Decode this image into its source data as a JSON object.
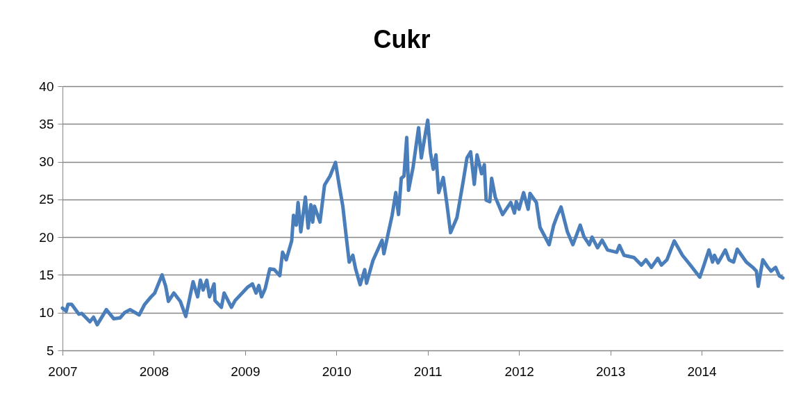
{
  "chart_data": {
    "type": "line",
    "title": "Cukr",
    "x": [
      2007.0,
      2007.04,
      2007.06,
      2007.1,
      2007.18,
      2007.21,
      2007.3,
      2007.34,
      2007.38,
      2007.48,
      2007.56,
      2007.63,
      2007.68,
      2007.74,
      2007.84,
      2007.9,
      2007.97,
      2008.01,
      2008.09,
      2008.13,
      2008.16,
      2008.22,
      2008.29,
      2008.35,
      2008.39,
      2008.43,
      2008.48,
      2008.51,
      2008.54,
      2008.58,
      2008.61,
      2008.66,
      2008.67,
      2008.74,
      2008.77,
      2008.85,
      2008.89,
      2009.03,
      2009.08,
      2009.12,
      2009.15,
      2009.18,
      2009.22,
      2009.27,
      2009.32,
      2009.38,
      2009.41,
      2009.45,
      2009.51,
      2009.53,
      2009.56,
      2009.58,
      2009.61,
      2009.66,
      2009.69,
      2009.72,
      2009.74,
      2009.76,
      2009.82,
      2009.87,
      2009.93,
      2009.99,
      2010.03,
      2010.07,
      2010.11,
      2010.14,
      2010.18,
      2010.21,
      2010.26,
      2010.31,
      2010.33,
      2010.4,
      2010.5,
      2010.52,
      2010.56,
      2010.61,
      2010.65,
      2010.68,
      2010.71,
      2010.74,
      2010.77,
      2010.79,
      2010.84,
      2010.9,
      2010.93,
      2010.96,
      2011.0,
      2011.03,
      2011.06,
      2011.09,
      2011.12,
      2011.17,
      2011.21,
      2011.25,
      2011.32,
      2011.35,
      2011.39,
      2011.43,
      2011.47,
      2011.51,
      2011.54,
      2011.59,
      2011.62,
      2011.64,
      2011.68,
      2011.7,
      2011.74,
      2011.82,
      2011.91,
      2011.95,
      2011.97,
      2012.0,
      2012.05,
      2012.1,
      2012.12,
      2012.19,
      2012.23,
      2012.33,
      2012.38,
      2012.42,
      2012.46,
      2012.53,
      2012.59,
      2012.67,
      2012.71,
      2012.77,
      2012.8,
      2012.86,
      2012.91,
      2012.97,
      2013.07,
      2013.1,
      2013.15,
      2013.26,
      2013.34,
      2013.39,
      2013.45,
      2013.52,
      2013.56,
      2013.62,
      2013.7,
      2013.79,
      2013.87,
      2013.98,
      2014.02,
      2014.08,
      2014.12,
      2014.14,
      2014.18,
      2014.26,
      2014.3,
      2014.35,
      2014.39,
      2014.49,
      2014.56,
      2014.6,
      2014.62,
      2014.67,
      2014.72,
      2014.76,
      2014.81,
      2014.85,
      2014.89
    ],
    "series": [
      {
        "color": "#4a7ebb",
        "values": [
          10.6,
          10.2,
          11.1,
          11.1,
          9.8,
          9.9,
          8.8,
          9.4,
          8.4,
          10.4,
          9.2,
          9.3,
          10.0,
          10.4,
          9.7,
          11.1,
          12.1,
          12.6,
          15.0,
          13.5,
          11.5,
          12.6,
          11.5,
          9.5,
          11.8,
          14.1,
          12.1,
          14.3,
          13.0,
          14.3,
          12.1,
          13.8,
          11.6,
          10.7,
          12.6,
          10.7,
          11.6,
          13.4,
          13.8,
          12.6,
          13.6,
          12.1,
          13.2,
          15.8,
          15.7,
          14.9,
          18.0,
          17.0,
          19.5,
          22.9,
          21.6,
          24.6,
          20.7,
          25.3,
          21.2,
          24.3,
          22.0,
          24.1,
          22.0,
          26.9,
          28.1,
          29.9,
          26.9,
          24.1,
          19.8,
          16.7,
          17.6,
          15.8,
          13.7,
          15.7,
          13.9,
          16.9,
          19.6,
          17.8,
          20.1,
          22.9,
          25.9,
          23.0,
          27.8,
          28.1,
          33.2,
          26.2,
          29.3,
          34.5,
          30.5,
          32.7,
          35.5,
          31.2,
          29.0,
          30.9,
          25.9,
          27.9,
          24.4,
          20.6,
          22.6,
          24.7,
          27.5,
          30.5,
          31.3,
          27.0,
          30.9,
          28.4,
          29.6,
          24.9,
          24.7,
          27.8,
          25.3,
          23.0,
          24.6,
          23.2,
          24.7,
          23.7,
          25.9,
          23.7,
          25.8,
          24.6,
          21.3,
          19.0,
          21.6,
          22.9,
          24.0,
          20.7,
          19.0,
          21.6,
          20.1,
          19.0,
          20.0,
          18.6,
          19.6,
          18.3,
          18.0,
          18.9,
          17.6,
          17.3,
          16.3,
          17.0,
          16.0,
          17.2,
          16.3,
          17.0,
          19.5,
          17.6,
          16.4,
          14.7,
          16.1,
          18.3,
          16.7,
          17.6,
          16.6,
          18.3,
          17.0,
          16.7,
          18.4,
          16.7,
          16.0,
          15.5,
          13.5,
          17.0,
          16.1,
          15.5,
          16.0,
          14.9,
          14.6
        ]
      }
    ],
    "xlim": [
      2007,
      2014.89
    ],
    "xticks": [
      2007,
      2008,
      2009,
      2010,
      2011,
      2012,
      2013,
      2014
    ],
    "ylim": [
      5,
      40
    ],
    "yticks": [
      5,
      10,
      15,
      20,
      25,
      30,
      35,
      40
    ],
    "grid": "y"
  }
}
